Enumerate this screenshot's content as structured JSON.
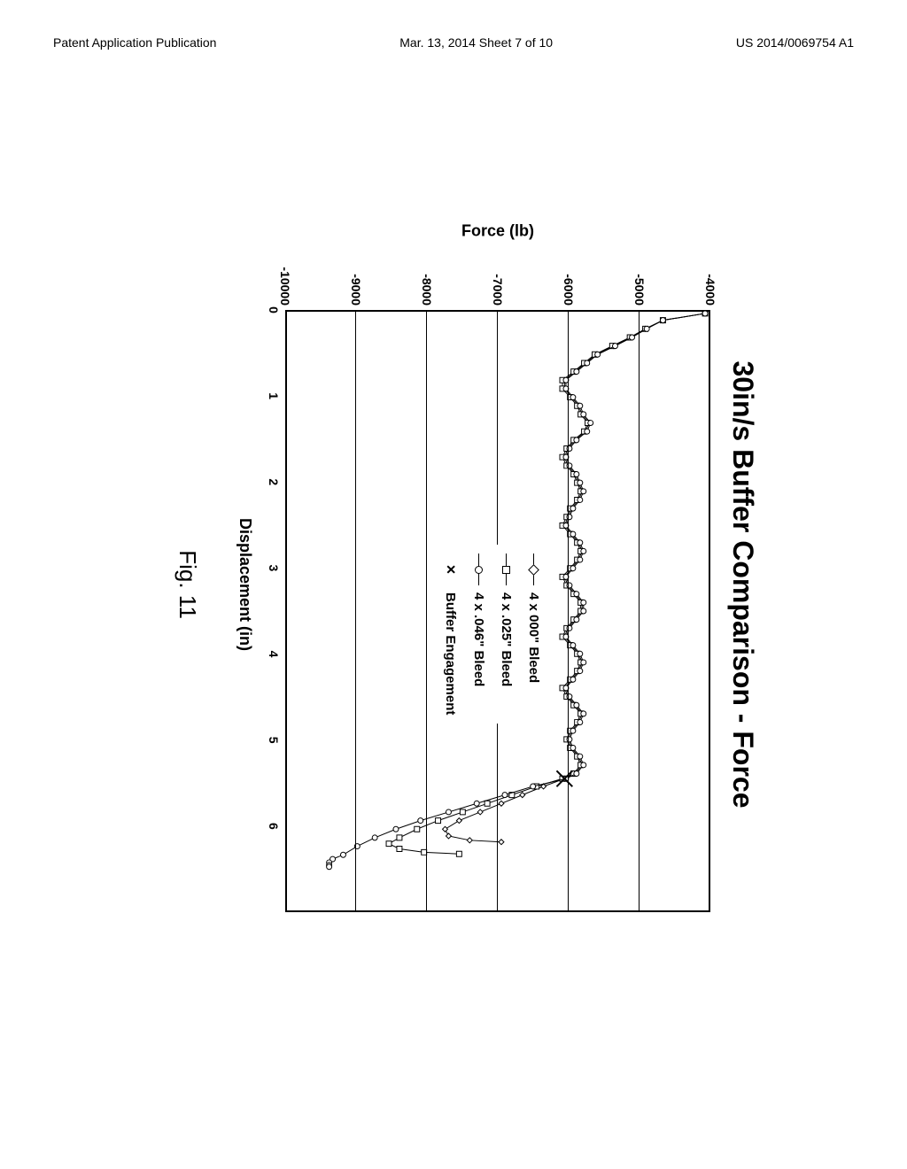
{
  "header": {
    "left": "Patent Application Publication",
    "center": "Mar. 13, 2014  Sheet 7 of 10",
    "right": "US 2014/0069754 A1"
  },
  "figure": {
    "label": "Fig. 11",
    "chart": {
      "type": "line",
      "title": "30in/s Buffer Comparison - Force",
      "title_fontsize": 32,
      "title_weight": "900",
      "xlabel": "Displacement (in)",
      "ylabel": "Force (lb)",
      "label_fontsize": 18,
      "background_color": "#ffffff",
      "gridline_color": "#000000",
      "border_color": "#000000",
      "xlim": [
        0,
        7
      ],
      "ylim": [
        -10000,
        -4000
      ],
      "xtick_step": 1,
      "ytick_step": 1000,
      "xticks": [
        0,
        1,
        2,
        3,
        4,
        5,
        6
      ],
      "yticks": [
        -4000,
        -5000,
        -6000,
        -7000,
        -8000,
        -9000,
        -10000
      ],
      "series": [
        {
          "name": "4 x 000\" Bleed",
          "marker": "diamond",
          "color": "#000000",
          "linewidth": 1,
          "data": [
            [
              0.02,
              -4050
            ],
            [
              0.1,
              -4650
            ],
            [
              0.2,
              -4900
            ],
            [
              0.3,
              -5100
            ],
            [
              0.4,
              -5350
            ],
            [
              0.5,
              -5600
            ],
            [
              0.6,
              -5750
            ],
            [
              0.7,
              -5900
            ],
            [
              0.8,
              -6050
            ],
            [
              0.9,
              -6050
            ],
            [
              1.0,
              -5950
            ],
            [
              1.1,
              -5850
            ],
            [
              1.2,
              -5800
            ],
            [
              1.3,
              -5700
            ],
            [
              1.4,
              -5750
            ],
            [
              1.5,
              -5900
            ],
            [
              1.6,
              -6000
            ],
            [
              1.7,
              -6050
            ],
            [
              1.8,
              -6000
            ],
            [
              1.9,
              -5900
            ],
            [
              2.0,
              -5850
            ],
            [
              2.1,
              -5800
            ],
            [
              2.2,
              -5850
            ],
            [
              2.3,
              -5950
            ],
            [
              2.4,
              -6000
            ],
            [
              2.5,
              -6050
            ],
            [
              2.6,
              -5950
            ],
            [
              2.7,
              -5850
            ],
            [
              2.8,
              -5800
            ],
            [
              2.9,
              -5850
            ],
            [
              3.0,
              -5950
            ],
            [
              3.1,
              -6050
            ],
            [
              3.2,
              -6000
            ],
            [
              3.3,
              -5900
            ],
            [
              3.4,
              -5800
            ],
            [
              3.5,
              -5800
            ],
            [
              3.6,
              -5900
            ],
            [
              3.7,
              -6000
            ],
            [
              3.8,
              -6050
            ],
            [
              3.9,
              -5950
            ],
            [
              4.0,
              -5850
            ],
            [
              4.1,
              -5800
            ],
            [
              4.2,
              -5850
            ],
            [
              4.3,
              -5950
            ],
            [
              4.4,
              -6050
            ],
            [
              4.5,
              -6000
            ],
            [
              4.6,
              -5900
            ],
            [
              4.7,
              -5800
            ],
            [
              4.8,
              -5850
            ],
            [
              4.9,
              -5950
            ],
            [
              5.0,
              -6000
            ],
            [
              5.1,
              -5950
            ],
            [
              5.2,
              -5850
            ],
            [
              5.3,
              -5800
            ],
            [
              5.4,
              -5900
            ],
            [
              5.46,
              -6050
            ],
            [
              5.55,
              -6350
            ],
            [
              5.65,
              -6650
            ],
            [
              5.75,
              -6950
            ],
            [
              5.85,
              -7250
            ],
            [
              5.95,
              -7550
            ],
            [
              6.05,
              -7750
            ],
            [
              6.13,
              -7700
            ],
            [
              6.18,
              -7400
            ],
            [
              6.2,
              -6950
            ]
          ]
        },
        {
          "name": "4 x .025\" Bleed",
          "marker": "square",
          "color": "#000000",
          "linewidth": 1,
          "data": [
            [
              0.02,
              -4050
            ],
            [
              0.1,
              -4650
            ],
            [
              0.2,
              -4900
            ],
            [
              0.3,
              -5120
            ],
            [
              0.4,
              -5370
            ],
            [
              0.5,
              -5620
            ],
            [
              0.6,
              -5770
            ],
            [
              0.7,
              -5920
            ],
            [
              0.8,
              -6080
            ],
            [
              0.9,
              -6080
            ],
            [
              1.0,
              -5970
            ],
            [
              1.1,
              -5870
            ],
            [
              1.2,
              -5820
            ],
            [
              1.3,
              -5720
            ],
            [
              1.4,
              -5770
            ],
            [
              1.5,
              -5920
            ],
            [
              1.6,
              -6020
            ],
            [
              1.7,
              -6080
            ],
            [
              1.8,
              -6020
            ],
            [
              1.9,
              -5920
            ],
            [
              2.0,
              -5870
            ],
            [
              2.1,
              -5820
            ],
            [
              2.2,
              -5870
            ],
            [
              2.3,
              -5970
            ],
            [
              2.4,
              -6020
            ],
            [
              2.5,
              -6080
            ],
            [
              2.6,
              -5970
            ],
            [
              2.7,
              -5870
            ],
            [
              2.8,
              -5820
            ],
            [
              2.9,
              -5870
            ],
            [
              3.0,
              -5970
            ],
            [
              3.1,
              -6080
            ],
            [
              3.2,
              -6020
            ],
            [
              3.3,
              -5920
            ],
            [
              3.4,
              -5820
            ],
            [
              3.5,
              -5820
            ],
            [
              3.6,
              -5920
            ],
            [
              3.7,
              -6020
            ],
            [
              3.8,
              -6080
            ],
            [
              3.9,
              -5970
            ],
            [
              4.0,
              -5870
            ],
            [
              4.1,
              -5820
            ],
            [
              4.2,
              -5870
            ],
            [
              4.3,
              -5970
            ],
            [
              4.4,
              -6080
            ],
            [
              4.5,
              -6020
            ],
            [
              4.6,
              -5920
            ],
            [
              4.7,
              -5820
            ],
            [
              4.8,
              -5870
            ],
            [
              4.9,
              -5970
            ],
            [
              5.0,
              -6020
            ],
            [
              5.1,
              -5970
            ],
            [
              5.2,
              -5870
            ],
            [
              5.3,
              -5820
            ],
            [
              5.4,
              -5920
            ],
            [
              5.46,
              -6080
            ],
            [
              5.55,
              -6450
            ],
            [
              5.65,
              -6800
            ],
            [
              5.75,
              -7150
            ],
            [
              5.85,
              -7500
            ],
            [
              5.95,
              -7850
            ],
            [
              6.05,
              -8150
            ],
            [
              6.15,
              -8400
            ],
            [
              6.22,
              -8550
            ],
            [
              6.28,
              -8400
            ],
            [
              6.32,
              -8050
            ],
            [
              6.34,
              -7550
            ]
          ]
        },
        {
          "name": "4 x .046\" Bleed",
          "marker": "circle",
          "color": "#000000",
          "linewidth": 1,
          "data": [
            [
              0.02,
              -4050
            ],
            [
              0.1,
              -4650
            ],
            [
              0.2,
              -4880
            ],
            [
              0.3,
              -5090
            ],
            [
              0.4,
              -5330
            ],
            [
              0.5,
              -5580
            ],
            [
              0.6,
              -5730
            ],
            [
              0.7,
              -5880
            ],
            [
              0.8,
              -6030
            ],
            [
              0.9,
              -6030
            ],
            [
              1.0,
              -5930
            ],
            [
              1.1,
              -5830
            ],
            [
              1.2,
              -5780
            ],
            [
              1.3,
              -5680
            ],
            [
              1.4,
              -5730
            ],
            [
              1.5,
              -5880
            ],
            [
              1.6,
              -5980
            ],
            [
              1.7,
              -6030
            ],
            [
              1.8,
              -5980
            ],
            [
              1.9,
              -5880
            ],
            [
              2.0,
              -5830
            ],
            [
              2.1,
              -5780
            ],
            [
              2.2,
              -5830
            ],
            [
              2.3,
              -5930
            ],
            [
              2.4,
              -5980
            ],
            [
              2.5,
              -6030
            ],
            [
              2.6,
              -5930
            ],
            [
              2.7,
              -5830
            ],
            [
              2.8,
              -5780
            ],
            [
              2.9,
              -5830
            ],
            [
              3.0,
              -5930
            ],
            [
              3.1,
              -6030
            ],
            [
              3.2,
              -5980
            ],
            [
              3.3,
              -5880
            ],
            [
              3.4,
              -5780
            ],
            [
              3.5,
              -5780
            ],
            [
              3.6,
              -5880
            ],
            [
              3.7,
              -5980
            ],
            [
              3.8,
              -6030
            ],
            [
              3.9,
              -5930
            ],
            [
              4.0,
              -5830
            ],
            [
              4.1,
              -5780
            ],
            [
              4.2,
              -5830
            ],
            [
              4.3,
              -5930
            ],
            [
              4.4,
              -6030
            ],
            [
              4.5,
              -5980
            ],
            [
              4.6,
              -5880
            ],
            [
              4.7,
              -5780
            ],
            [
              4.8,
              -5830
            ],
            [
              4.9,
              -5930
            ],
            [
              5.0,
              -5980
            ],
            [
              5.1,
              -5930
            ],
            [
              5.2,
              -5830
            ],
            [
              5.3,
              -5780
            ],
            [
              5.4,
              -5880
            ],
            [
              5.46,
              -6030
            ],
            [
              5.55,
              -6500
            ],
            [
              5.65,
              -6900
            ],
            [
              5.75,
              -7300
            ],
            [
              5.85,
              -7700
            ],
            [
              5.95,
              -8100
            ],
            [
              6.05,
              -8450
            ],
            [
              6.15,
              -8750
            ],
            [
              6.25,
              -9000
            ],
            [
              6.35,
              -9200
            ],
            [
              6.4,
              -9350
            ],
            [
              6.44,
              -9400
            ],
            [
              6.47,
              -9400
            ],
            [
              6.49,
              -9400
            ]
          ]
        }
      ],
      "extra_markers": [
        {
          "name": "Buffer Engagement",
          "marker": "cross",
          "x": 5.46,
          "y": -6050
        }
      ],
      "legend": {
        "position": "middle-right-inset",
        "items": [
          {
            "label": "4 x 000\" Bleed",
            "marker": "diamond"
          },
          {
            "label": "4 x .025\" Bleed",
            "marker": "square"
          },
          {
            "label": "4 x .046\" Bleed",
            "marker": "circle"
          },
          {
            "label": "Buffer Engagement",
            "marker": "cross"
          }
        ]
      }
    }
  }
}
